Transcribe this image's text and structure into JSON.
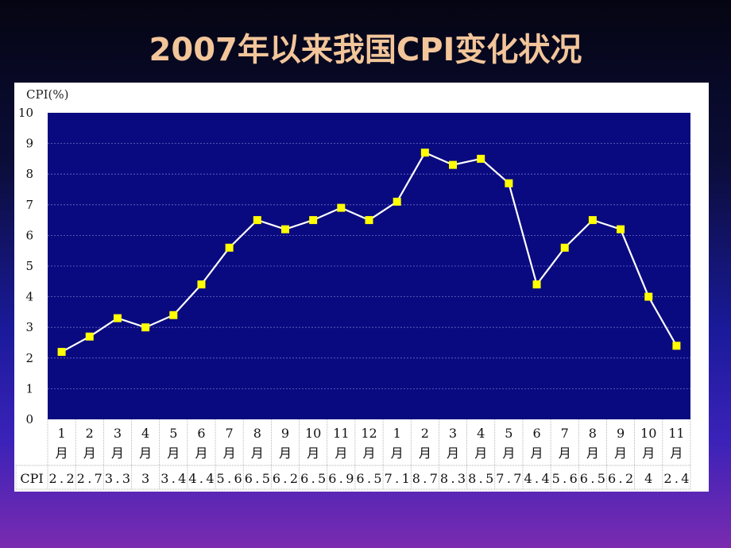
{
  "title": "2007年以来我国CPI变化状况",
  "chart_data": {
    "type": "line",
    "title": "2007年以来我国CPI变化状况",
    "ylabel": "CPI(%)",
    "xlabel": "",
    "ylim": [
      0,
      10
    ],
    "yticks": [
      "0",
      "1",
      "2",
      "3",
      "4",
      "5",
      "6",
      "7",
      "8",
      "9",
      "10"
    ],
    "grid": true,
    "categories": [
      "1月",
      "2月",
      "3月",
      "4月",
      "5月",
      "6月",
      "7月",
      "8月",
      "9月",
      "10月",
      "11月",
      "12月",
      "1月",
      "2月",
      "3月",
      "4月",
      "5月",
      "6月",
      "7月",
      "8月",
      "9月",
      "10月",
      "11月"
    ],
    "cat_lines": [
      [
        "1",
        "月"
      ],
      [
        "2",
        "月"
      ],
      [
        "3",
        "月"
      ],
      [
        "4",
        "月"
      ],
      [
        "5",
        "月"
      ],
      [
        "6",
        "月"
      ],
      [
        "7",
        "月"
      ],
      [
        "8",
        "月"
      ],
      [
        "9",
        "月"
      ],
      [
        "10",
        "月"
      ],
      [
        "11",
        "月"
      ],
      [
        "12",
        "月"
      ],
      [
        "1",
        "月"
      ],
      [
        "2",
        "月"
      ],
      [
        "3",
        "月"
      ],
      [
        "4",
        "月"
      ],
      [
        "5",
        "月"
      ],
      [
        "6",
        "月"
      ],
      [
        "7",
        "月"
      ],
      [
        "8",
        "月"
      ],
      [
        "9",
        "月"
      ],
      [
        "10",
        "月"
      ],
      [
        "11",
        "月"
      ]
    ],
    "series": [
      {
        "name": "CPI",
        "values": [
          2.2,
          2.7,
          3.3,
          3.0,
          3.4,
          4.4,
          5.6,
          6.5,
          6.2,
          6.5,
          6.9,
          6.5,
          7.1,
          8.7,
          8.3,
          8.5,
          7.7,
          4.4,
          5.6,
          6.5,
          6.2,
          4.0,
          2.4
        ],
        "table_labels": [
          "2.2",
          "2.7",
          "3.3",
          "3",
          "3.4",
          "4.4",
          "5.6",
          "6.5",
          "6.2",
          "6.5",
          "6.9",
          "6.5",
          "7.1",
          "8.7",
          "8.3",
          "8.5",
          "7.7",
          "4.4",
          "5.6",
          "6.5",
          "6.2",
          "4",
          "2.4"
        ]
      }
    ],
    "colors": {
      "plot_bg": "#0a0a80",
      "line": "#ffffff",
      "marker": "#ffff00",
      "grid": "#6a6acc"
    }
  }
}
